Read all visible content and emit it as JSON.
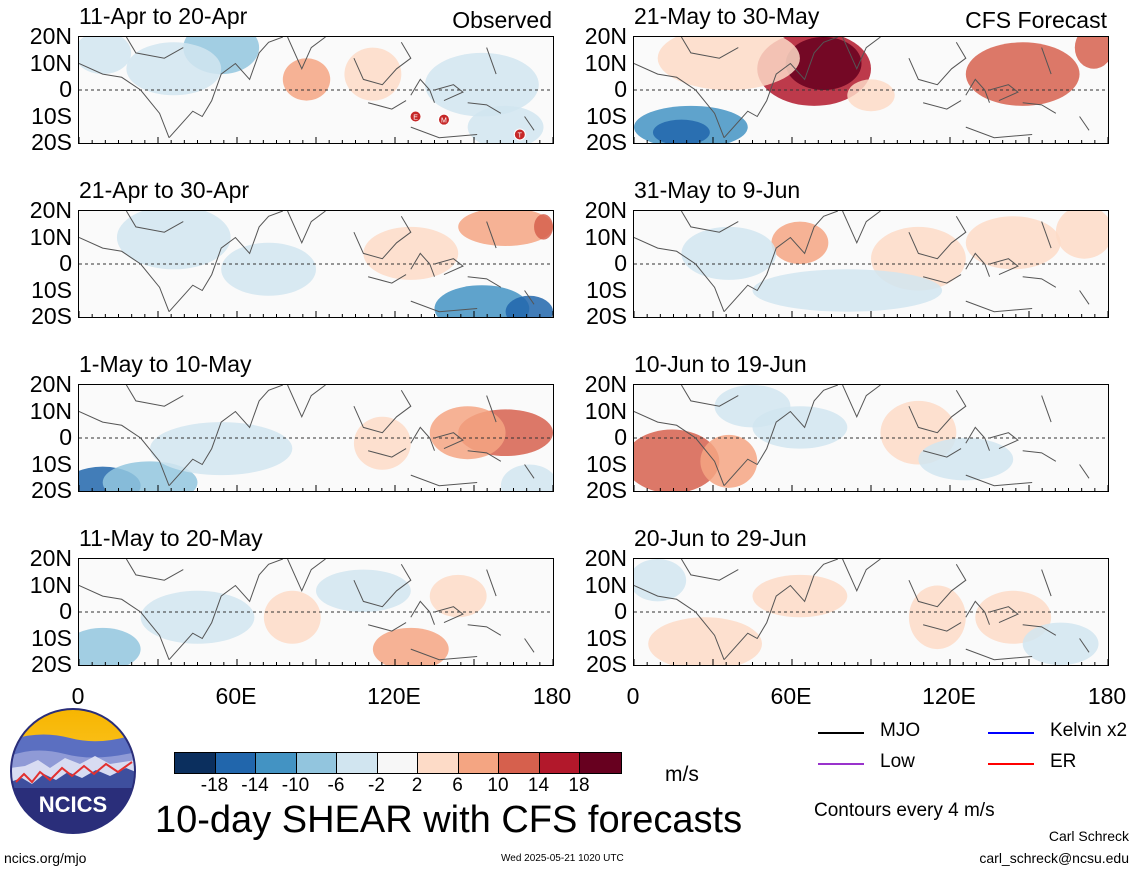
{
  "panels": [
    {
      "title": "11-Apr to 20-Apr",
      "label": "Observed"
    },
    {
      "title": "21-Apr to 30-Apr",
      "label": ""
    },
    {
      "title": "1-May to 10-May",
      "label": ""
    },
    {
      "title": "11-May to 20-May",
      "label": ""
    },
    {
      "title": "21-May to 30-May",
      "label": "CFS Forecast"
    },
    {
      "title": "31-May to 9-Jun",
      "label": ""
    },
    {
      "title": "10-Jun to 19-Jun",
      "label": ""
    },
    {
      "title": "20-Jun to 29-Jun",
      "label": ""
    }
  ],
  "lat_labels": [
    "20N",
    "10N",
    "0",
    "10S",
    "20S"
  ],
  "lon_labels": [
    "0",
    "60E",
    "120E",
    "180"
  ],
  "storm_markers": [
    "E",
    "M",
    "T"
  ],
  "colorbar": {
    "colors": [
      "#0b2f5e",
      "#2166ac",
      "#4393c3",
      "#92c5de",
      "#d1e5f0",
      "#f7f7f7",
      "#fddbc7",
      "#f4a582",
      "#d6604d",
      "#b2182b",
      "#67001f"
    ],
    "ticks": [
      "-18",
      "-14",
      "-10",
      "-6",
      "-2",
      "2",
      "6",
      "10",
      "14",
      "18"
    ],
    "unit": "m/s"
  },
  "legend": [
    {
      "name": "MJO",
      "color": "#000000"
    },
    {
      "name": "Kelvin x2",
      "color": "#0000ff"
    },
    {
      "name": "Low",
      "color": "#9933cc"
    },
    {
      "name": "ER",
      "color": "#ff0000"
    }
  ],
  "contour_note": "Contours every 4 m/s",
  "main_title": "10-day SHEAR with CFS forecasts",
  "logo_text": "NCICS",
  "url": "ncics.org/mjo",
  "timestamp": "Wed 2025-05-21 1020 UTC",
  "author": "Carl Schreck",
  "email": "carl_schreck@ncsu.edu"
}
